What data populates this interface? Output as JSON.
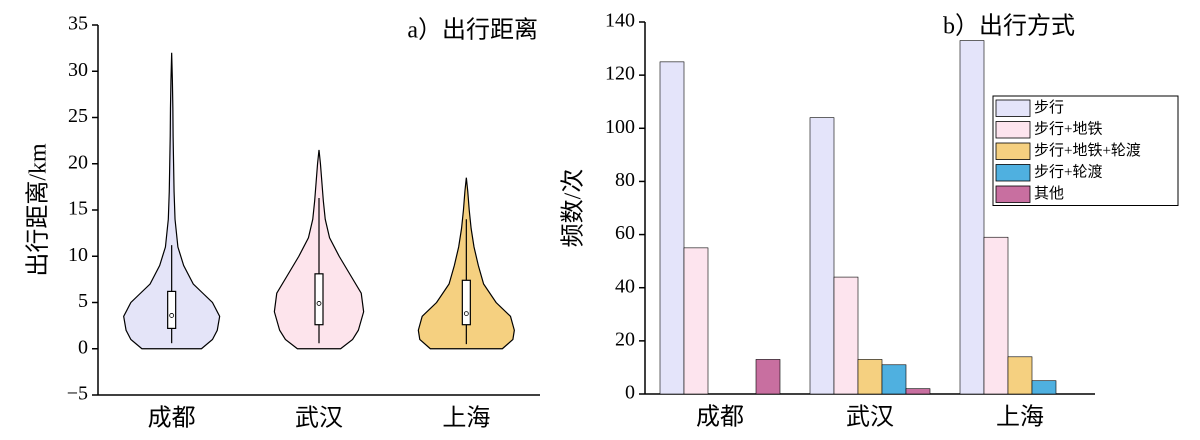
{
  "chart_data": [
    {
      "type": "violin",
      "title": "a）出行距离",
      "y_label": "出行距离/km",
      "categories": [
        "成都",
        "武汉",
        "上海"
      ],
      "ylim": [
        -5,
        35
      ],
      "yticks": [
        {
          "value": -5,
          "label": "−5"
        },
        0,
        5,
        10,
        15,
        20,
        25,
        30,
        35
      ],
      "violins": [
        {
          "color": "#e4e4f8",
          "density_y": [
            0,
            1,
            2,
            3.5,
            5,
            6,
            7,
            9,
            11,
            14,
            17,
            20,
            23,
            26,
            29,
            32
          ],
          "density": [
            0.62,
            0.85,
            0.95,
            1.0,
            0.85,
            0.65,
            0.45,
            0.25,
            0.13,
            0.07,
            0.05,
            0.04,
            0.03,
            0.025,
            0.015,
            0
          ],
          "whisker": [
            0.6,
            11.2
          ],
          "q1": 2.2,
          "median": 3.6,
          "q3": 6.2
        },
        {
          "color": "#fde4ec",
          "density_y": [
            0,
            1,
            2,
            4,
            6,
            8,
            10,
            12,
            14,
            16,
            18,
            20,
            21.5
          ],
          "density": [
            0.45,
            0.7,
            0.82,
            0.93,
            0.88,
            0.65,
            0.42,
            0.22,
            0.13,
            0.09,
            0.06,
            0.03,
            0
          ],
          "whisker": [
            0.6,
            16.3
          ],
          "q1": 2.6,
          "median": 4.9,
          "q3": 8.1
        },
        {
          "color": "#f5d080",
          "density_y": [
            0,
            1,
            2,
            3.5,
            5,
            7,
            9,
            11,
            13,
            15,
            17,
            18.5
          ],
          "density": [
            0.75,
            0.97,
            1.0,
            0.92,
            0.62,
            0.36,
            0.25,
            0.16,
            0.1,
            0.06,
            0.03,
            0
          ],
          "whisker": [
            0.5,
            14
          ],
          "q1": 2.6,
          "median": 3.8,
          "q3": 7.4
        }
      ]
    },
    {
      "type": "bar",
      "title": "b）出行方式",
      "y_label": "频数/次",
      "categories": [
        "成都",
        "武汉",
        "上海"
      ],
      "ylim": [
        0,
        140
      ],
      "yticks": [
        0,
        20,
        40,
        60,
        80,
        100,
        120,
        140
      ],
      "legend": "upper right",
      "series": [
        {
          "name": "步行",
          "color": "#e4e4fa",
          "values": [
            125,
            104,
            133
          ]
        },
        {
          "name": "步行+地铁",
          "color": "#fde4ee",
          "values": [
            55,
            44,
            59
          ]
        },
        {
          "name": "步行+地铁+轮渡",
          "color": "#f5d080",
          "values": [
            0,
            13,
            14
          ]
        },
        {
          "name": "步行+轮渡",
          "color": "#4fb0e0",
          "values": [
            0,
            11,
            5
          ]
        },
        {
          "name": "其他",
          "color": "#c86fa0",
          "values": [
            13,
            2,
            0
          ]
        }
      ]
    }
  ]
}
